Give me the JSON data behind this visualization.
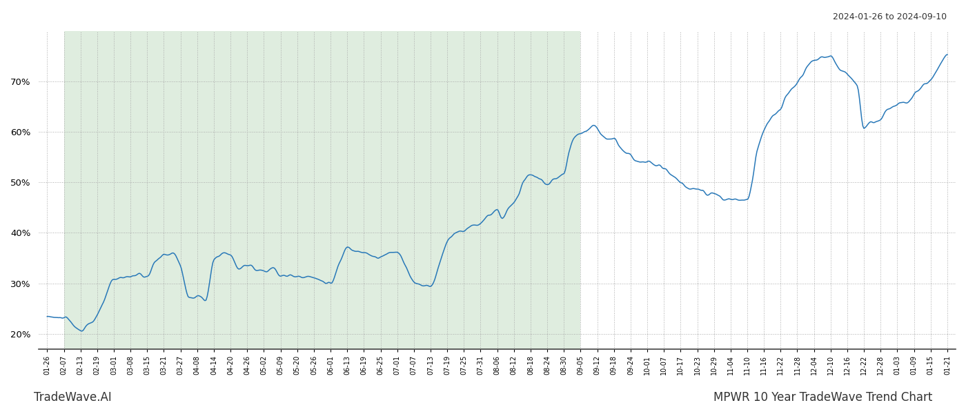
{
  "title_top_right": "2024-01-26 to 2024-09-10",
  "title_bottom_left": "TradeWave.AI",
  "title_bottom_right": "MPWR 10 Year TradeWave Trend Chart",
  "line_color": "#2878b8",
  "shaded_region_color": "#c5dfc5",
  "shaded_region_alpha": 0.55,
  "background_color": "#ffffff",
  "grid_color": "#aaaaaa",
  "grid_linestyle": ":",
  "ylim": [
    17,
    80
  ],
  "yticks": [
    20,
    30,
    40,
    50,
    60,
    70
  ],
  "shaded_start_label": "02-07",
  "shaded_end_label": "09-05",
  "line_width": 1.1,
  "xtick_labels": [
    "01-26",
    "02-07",
    "02-13",
    "02-19",
    "03-01",
    "03-08",
    "03-15",
    "03-21",
    "03-27",
    "04-08",
    "04-14",
    "04-20",
    "04-26",
    "05-02",
    "05-09",
    "05-20",
    "05-26",
    "06-01",
    "06-13",
    "06-19",
    "06-25",
    "07-01",
    "07-07",
    "07-13",
    "07-19",
    "07-25",
    "07-31",
    "08-06",
    "08-12",
    "08-18",
    "08-24",
    "08-30",
    "09-05",
    "09-12",
    "09-18",
    "09-24",
    "10-01",
    "10-07",
    "10-17",
    "10-23",
    "10-29",
    "11-04",
    "11-10",
    "11-16",
    "11-22",
    "11-28",
    "12-04",
    "12-10",
    "12-16",
    "12-22",
    "12-28",
    "01-03",
    "01-09",
    "01-15",
    "01-21"
  ]
}
